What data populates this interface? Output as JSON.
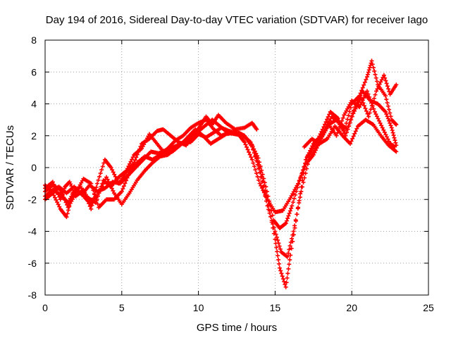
{
  "chart_data": {
    "type": "scatter",
    "title": "Day 194 of 2016, Sidereal Day-to-day VTEC variation (SDTVAR) for receiver Iago",
    "xlabel": "GPS time / hours",
    "ylabel": "SDTVAR / TECUs",
    "xlim": [
      0,
      25
    ],
    "ylim": [
      -8,
      8
    ],
    "xticks": [
      "0",
      "5",
      "10",
      "15",
      "20",
      "25"
    ],
    "yticks": [
      "-8",
      "-6",
      "-4",
      "-2",
      "0",
      "2",
      "4",
      "6",
      "8"
    ],
    "grid": true,
    "marker": "plus",
    "color": "#ff0000",
    "series": [
      {
        "name": "trace-1",
        "points": [
          [
            0,
            -1.3
          ],
          [
            0.5,
            -0.9
          ],
          [
            1.0,
            -2.0
          ],
          [
            1.3,
            -1.2
          ],
          [
            1.6,
            -0.9
          ],
          [
            2.0,
            -1.8
          ],
          [
            2.5,
            -1.4
          ],
          [
            3.0,
            -2.6
          ],
          [
            3.4,
            -1.0
          ],
          [
            3.9,
            0.5
          ],
          [
            4.3,
            0.0
          ],
          [
            4.8,
            -1.0
          ],
          [
            5.3,
            -0.3
          ],
          [
            5.8,
            0.3
          ],
          [
            6.3,
            1.5
          ],
          [
            6.8,
            1.8
          ],
          [
            7.3,
            2.3
          ],
          [
            7.7,
            2.4
          ],
          [
            8.2,
            2.0
          ],
          [
            8.7,
            1.6
          ],
          [
            9.2,
            1.4
          ],
          [
            9.7,
            2.0
          ],
          [
            10.1,
            2.6
          ],
          [
            10.5,
            3.2
          ],
          [
            10.9,
            2.7
          ],
          [
            11.3,
            3.3
          ],
          [
            11.8,
            2.8
          ],
          [
            12.4,
            2.4
          ],
          [
            13.0,
            2.5
          ],
          [
            13.5,
            2.8
          ],
          [
            13.8,
            2.4
          ]
        ]
      },
      {
        "name": "trace-2",
        "points": [
          [
            0,
            -1.8
          ],
          [
            0.5,
            -1.4
          ],
          [
            1.0,
            -1.7
          ],
          [
            1.5,
            -2.2
          ],
          [
            2.0,
            -1.3
          ],
          [
            2.6,
            -1.9
          ],
          [
            3.0,
            -2.3
          ],
          [
            3.5,
            -1.6
          ],
          [
            4.0,
            -0.6
          ],
          [
            4.5,
            -1.6
          ],
          [
            5.0,
            -2.3
          ],
          [
            5.5,
            -1.6
          ],
          [
            6.0,
            -0.8
          ],
          [
            6.5,
            -0.2
          ],
          [
            7.0,
            0.3
          ],
          [
            7.5,
            0.7
          ],
          [
            8.0,
            0.8
          ],
          [
            8.5,
            1.2
          ],
          [
            9.0,
            1.6
          ],
          [
            9.5,
            1.6
          ],
          [
            10.0,
            2.1
          ],
          [
            10.5,
            1.9
          ],
          [
            11.0,
            2.2
          ],
          [
            11.5,
            2.5
          ],
          [
            12.0,
            2.3
          ],
          [
            12.6,
            2.2
          ],
          [
            13.0,
            2.0
          ],
          [
            13.5,
            1.3
          ],
          [
            14.0,
            0.0
          ],
          [
            14.5,
            -2.0
          ],
          [
            15.0,
            -4.5
          ],
          [
            15.3,
            -6.3
          ],
          [
            15.7,
            -7.5
          ],
          [
            16.0,
            -5.5
          ],
          [
            16.5,
            -2.5
          ],
          [
            17.0,
            0.5
          ],
          [
            17.5,
            1.5
          ],
          [
            18.0,
            2.0
          ],
          [
            18.5,
            2.7
          ],
          [
            19.0,
            2.0
          ],
          [
            19.5,
            3.3
          ],
          [
            20.0,
            4.2
          ],
          [
            20.5,
            3.8
          ],
          [
            21.0,
            4.8
          ],
          [
            21.5,
            3.5
          ],
          [
            22.0,
            2.5
          ],
          [
            22.5,
            1.5
          ],
          [
            22.8,
            1.3
          ]
        ]
      },
      {
        "name": "trace-3",
        "points": [
          [
            0,
            -2.0
          ],
          [
            0.5,
            -1.6
          ],
          [
            1.0,
            -2.6
          ],
          [
            1.4,
            -3.1
          ],
          [
            1.8,
            -1.6
          ],
          [
            2.3,
            -1.2
          ],
          [
            2.8,
            -1.9
          ],
          [
            3.3,
            -2.2
          ],
          [
            3.8,
            -0.8
          ],
          [
            4.3,
            -1.2
          ],
          [
            4.8,
            -0.6
          ],
          [
            5.3,
            -0.2
          ],
          [
            5.8,
            0.8
          ],
          [
            6.3,
            1.2
          ],
          [
            6.8,
            2.1
          ],
          [
            7.3,
            1.5
          ],
          [
            7.8,
            0.9
          ],
          [
            8.3,
            1.0
          ],
          [
            8.8,
            1.4
          ],
          [
            9.3,
            1.9
          ],
          [
            9.8,
            2.4
          ],
          [
            10.3,
            2.0
          ],
          [
            10.8,
            1.5
          ],
          [
            11.3,
            1.8
          ],
          [
            11.8,
            2.1
          ],
          [
            12.4,
            2.2
          ],
          [
            13.0,
            2.0
          ],
          [
            13.5,
            1.4
          ],
          [
            14.0,
            -0.3
          ],
          [
            14.5,
            -2.4
          ],
          [
            15.0,
            -4.0
          ],
          [
            15.4,
            -5.3
          ],
          [
            15.8,
            -5.6
          ],
          [
            16.2,
            -4.0
          ],
          [
            16.7,
            -1.5
          ],
          [
            17.2,
            0.5
          ],
          [
            17.7,
            1.3
          ],
          [
            18.2,
            2.3
          ],
          [
            18.7,
            3.2
          ],
          [
            19.2,
            2.8
          ],
          [
            19.7,
            2.4
          ],
          [
            20.2,
            3.8
          ],
          [
            20.7,
            4.8
          ],
          [
            21.2,
            4.2
          ],
          [
            21.7,
            4.0
          ],
          [
            22.2,
            3.5
          ],
          [
            22.6,
            2.5
          ],
          [
            22.9,
            1.4
          ]
        ]
      },
      {
        "name": "trace-4",
        "points": [
          [
            0,
            -1.5
          ],
          [
            0.5,
            -1.1
          ],
          [
            1.0,
            -1.4
          ],
          [
            1.5,
            -2.5
          ],
          [
            2.0,
            -1.6
          ],
          [
            2.5,
            -0.7
          ],
          [
            3.0,
            -1.0
          ],
          [
            3.5,
            -2.5
          ],
          [
            4.0,
            -2.0
          ],
          [
            4.5,
            -2.0
          ],
          [
            5.0,
            -1.5
          ],
          [
            5.5,
            -0.3
          ],
          [
            6.0,
            0.3
          ],
          [
            6.5,
            0.7
          ],
          [
            7.0,
            0.5
          ],
          [
            7.5,
            0.8
          ],
          [
            8.0,
            1.2
          ],
          [
            8.5,
            1.7
          ],
          [
            9.0,
            2.0
          ],
          [
            9.5,
            2.5
          ],
          [
            10.0,
            2.8
          ],
          [
            10.5,
            3.0
          ],
          [
            11.0,
            2.4
          ],
          [
            11.5,
            2.0
          ],
          [
            12.0,
            2.2
          ],
          [
            12.6,
            2.1
          ],
          [
            13.0,
            1.6
          ],
          [
            13.5,
            0.5
          ],
          [
            14.0,
            -1.0
          ],
          [
            14.5,
            -2.0
          ],
          [
            15.0,
            -2.8
          ],
          [
            15.5,
            -2.7
          ],
          [
            16.0,
            -1.9
          ],
          [
            16.5,
            -1.0
          ],
          [
            17.0,
            0.2
          ],
          [
            17.5,
            0.8
          ],
          [
            18.0,
            1.8
          ],
          [
            18.5,
            2.7
          ],
          [
            19.0,
            3.0
          ],
          [
            19.5,
            2.3
          ],
          [
            20.0,
            4.0
          ],
          [
            20.5,
            4.5
          ],
          [
            21.0,
            5.7
          ],
          [
            21.3,
            6.7
          ],
          [
            21.7,
            5.2
          ],
          [
            22.2,
            4.5
          ],
          [
            22.6,
            3.0
          ],
          [
            22.9,
            2.7
          ]
        ]
      },
      {
        "name": "trace-5",
        "points": [
          [
            0,
            -1.1
          ],
          [
            0.4,
            -1.5
          ],
          [
            0.9,
            -1.2
          ],
          [
            1.4,
            -1.6
          ],
          [
            1.9,
            -1.2
          ],
          [
            2.4,
            -1.7
          ],
          [
            2.9,
            -1.1
          ],
          [
            3.4,
            -1.5
          ],
          [
            3.9,
            -1.3
          ],
          [
            4.4,
            -0.9
          ],
          [
            4.9,
            -1.0
          ],
          [
            5.4,
            -0.5
          ],
          [
            5.9,
            0.0
          ],
          [
            6.4,
            0.5
          ],
          [
            6.9,
            1.0
          ],
          [
            7.4,
            0.9
          ],
          [
            7.9,
            1.1
          ],
          [
            8.4,
            1.3
          ],
          [
            8.9,
            1.5
          ],
          [
            9.4,
            1.8
          ],
          [
            9.9,
            2.2
          ],
          [
            10.4,
            2.6
          ],
          [
            10.9,
            3.0
          ],
          [
            11.4,
            2.6
          ],
          [
            11.9,
            2.2
          ],
          [
            12.4,
            2.1
          ],
          [
            12.9,
            2.0
          ],
          [
            13.4,
            1.6
          ],
          [
            13.9,
            0.6
          ],
          [
            14.4,
            -1.2
          ],
          [
            14.9,
            -3.3
          ],
          [
            15.3,
            -3.8
          ],
          [
            15.7,
            -3.5
          ],
          [
            16.1,
            -2.4
          ],
          [
            16.6,
            -0.8
          ],
          [
            17.1,
            0.7
          ],
          [
            17.6,
            1.4
          ],
          [
            18.1,
            2.4
          ],
          [
            18.6,
            3.5
          ],
          [
            19.1,
            3.1
          ],
          [
            19.6,
            2.0
          ],
          [
            20.1,
            3.4
          ],
          [
            20.6,
            4.4
          ],
          [
            21.1,
            3.2
          ],
          [
            21.6,
            4.8
          ],
          [
            22.1,
            5.8
          ],
          [
            22.5,
            4.6
          ],
          [
            22.9,
            5.2
          ]
        ]
      },
      {
        "name": "trace-6",
        "points": [
          [
            16.9,
            1.3
          ],
          [
            17.4,
            1.8
          ],
          [
            17.9,
            1.5
          ],
          [
            18.4,
            1.8
          ],
          [
            18.9,
            2.6
          ],
          [
            19.4,
            2.0
          ],
          [
            19.9,
            1.5
          ],
          [
            20.4,
            2.6
          ],
          [
            20.9,
            3.0
          ],
          [
            21.4,
            2.7
          ],
          [
            21.9,
            2.0
          ],
          [
            22.4,
            1.4
          ],
          [
            22.9,
            1.0
          ]
        ]
      }
    ]
  }
}
